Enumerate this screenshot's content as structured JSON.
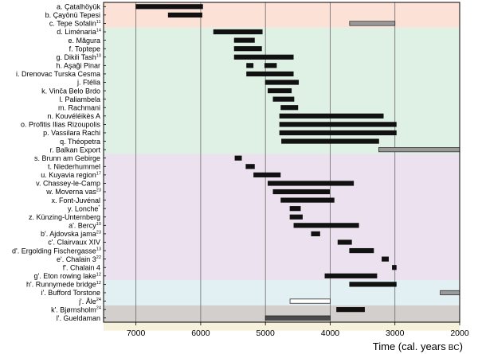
{
  "chart_data": {
    "type": "range-bar",
    "xlabel": "Time (cal. years",
    "xlabel_unit": "BC",
    "xlabel_close": ")",
    "xlim": [
      7500,
      2000
    ],
    "x_reversed": true,
    "xticks": [
      7000,
      6000,
      5000,
      4000,
      3000,
      2000
    ],
    "vertical_lines_at": [
      7000,
      6000,
      5000,
      4000,
      3000
    ],
    "bands": [
      {
        "from_row": 0,
        "to_row": 2,
        "color": "#fbe1d6"
      },
      {
        "from_row": 3,
        "to_row": 17,
        "color": "#dff0e4"
      },
      {
        "from_row": 18,
        "to_row": 32,
        "color": "#ece1ee"
      },
      {
        "from_row": 33,
        "to_row": 35,
        "color": "#e2f0f3"
      },
      {
        "from_row": 36,
        "to_row": 37,
        "color": "#d3cfcc"
      },
      {
        "from_row": 38,
        "to_row": 38,
        "color": "#f6f1da"
      }
    ],
    "rows": [
      {
        "label": "a. Çatalhöyük",
        "sup": "",
        "bars": [
          {
            "start": 7000,
            "end": 5970,
            "style": "black"
          }
        ]
      },
      {
        "label": "b. Çayönü Tepesi",
        "sup": "",
        "bars": [
          {
            "start": 6500,
            "end": 5980,
            "style": "black"
          }
        ]
      },
      {
        "label": "c. Tepe Sofalin",
        "sup": "11",
        "bars": [
          {
            "start": 3700,
            "end": 3000,
            "style": "gray"
          }
        ]
      },
      {
        "label": "d. Liménaria",
        "sup": "14",
        "bars": [
          {
            "start": 5800,
            "end": 5050,
            "style": "black"
          }
        ]
      },
      {
        "label": "e. Măgura",
        "sup": "",
        "bars": [
          {
            "start": 5480,
            "end": 5170,
            "style": "black"
          }
        ]
      },
      {
        "label": "f. Toptepe",
        "sup": "",
        "bars": [
          {
            "start": 5480,
            "end": 5060,
            "style": "black"
          }
        ]
      },
      {
        "label": "g. Dikili Tash",
        "sup": "10",
        "bars": [
          {
            "start": 5480,
            "end": 4570,
            "style": "black"
          }
        ]
      },
      {
        "label": "h. Aşaği Pinar",
        "sup": "",
        "bars": [
          {
            "start": 5290,
            "end": 5190,
            "style": "black"
          },
          {
            "start": 5010,
            "end": 4830,
            "style": "black"
          }
        ]
      },
      {
        "label": "i. Drenovac Turska Cesma",
        "sup": "",
        "bars": [
          {
            "start": 5290,
            "end": 4570,
            "style": "black"
          }
        ]
      },
      {
        "label": "j. Ftélia",
        "sup": "",
        "bars": [
          {
            "start": 5000,
            "end": 4490,
            "style": "black"
          }
        ]
      },
      {
        "label": "k. Vinča Belo Brdo",
        "sup": "",
        "bars": [
          {
            "start": 4960,
            "end": 4600,
            "style": "black"
          }
        ]
      },
      {
        "label": "l. Paliambela",
        "sup": "",
        "bars": [
          {
            "start": 4880,
            "end": 4560,
            "style": "black"
          }
        ]
      },
      {
        "label": "m. Rachmani",
        "sup": "",
        "bars": [
          {
            "start": 4760,
            "end": 4500,
            "style": "black"
          }
        ]
      },
      {
        "label": "n. Kouvéléikès A",
        "sup": "",
        "bars": [
          {
            "start": 4780,
            "end": 3180,
            "style": "black"
          }
        ]
      },
      {
        "label": "o. Profitis Ilias Rizoupolis",
        "sup": "",
        "bars": [
          {
            "start": 4780,
            "end": 2980,
            "style": "black"
          }
        ]
      },
      {
        "label": "p. Vassilara Rachi",
        "sup": "",
        "bars": [
          {
            "start": 4780,
            "end": 2980,
            "style": "black"
          }
        ]
      },
      {
        "label": "q. Théopetra",
        "sup": "",
        "bars": [
          {
            "start": 4750,
            "end": 3250,
            "style": "black"
          }
        ]
      },
      {
        "label": "r. Balkan Export",
        "sup": "",
        "bars": [
          {
            "start": 3250,
            "end": 2000,
            "style": "gray"
          }
        ]
      },
      {
        "label": "s. Brunn am Gebirge",
        "sup": "",
        "bars": [
          {
            "start": 5470,
            "end": 5370,
            "style": "black"
          }
        ]
      },
      {
        "label": "t. Niederhummel",
        "sup": "",
        "bars": [
          {
            "start": 5300,
            "end": 5170,
            "style": "black"
          }
        ]
      },
      {
        "label": "u. Kuyavia region",
        "sup": "17",
        "bars": [
          {
            "start": 5180,
            "end": 4770,
            "style": "black"
          }
        ]
      },
      {
        "label": "v. Chassey-le-Camp",
        "sup": "",
        "bars": [
          {
            "start": 4960,
            "end": 3640,
            "style": "black"
          }
        ]
      },
      {
        "label": "w. Moverna vas",
        "sup": "23",
        "bars": [
          {
            "start": 4880,
            "end": 4010,
            "style": "black"
          }
        ]
      },
      {
        "label": "x. Font-Juvénal",
        "sup": "",
        "bars": [
          {
            "start": 4760,
            "end": 3940,
            "style": "black"
          }
        ]
      },
      {
        "label": "y. Lonche",
        "sup": "*",
        "bars": [
          {
            "start": 4620,
            "end": 4460,
            "style": "black"
          }
        ]
      },
      {
        "label": "z. Künzing-Unternberg",
        "sup": "",
        "bars": [
          {
            "start": 4620,
            "end": 4430,
            "style": "black"
          }
        ]
      },
      {
        "label": "a'. Bercy",
        "sup": "10",
        "bars": [
          {
            "start": 4560,
            "end": 3560,
            "style": "black"
          }
        ]
      },
      {
        "label": "b'. Ajdovska jama",
        "sup": "23",
        "bars": [
          {
            "start": 4290,
            "end": 4160,
            "style": "black"
          }
        ]
      },
      {
        "label": "c'. Clairvaux XIV",
        "sup": "",
        "bars": [
          {
            "start": 3880,
            "end": 3670,
            "style": "black"
          }
        ]
      },
      {
        "label": "d'. Ergolding Fischergasse",
        "sup": "13",
        "bars": [
          {
            "start": 3700,
            "end": 3330,
            "style": "black"
          }
        ]
      },
      {
        "label": "e'. Chalain 3",
        "sup": "22",
        "bars": [
          {
            "start": 3200,
            "end": 3100,
            "style": "black"
          }
        ]
      },
      {
        "label": "f'. Chalain 4",
        "sup": "",
        "bars": [
          {
            "start": 3040,
            "end": 2980,
            "style": "black"
          }
        ]
      },
      {
        "label": "g'. Eton rowing lake",
        "sup": "12",
        "bars": [
          {
            "start": 4080,
            "end": 3280,
            "style": "black"
          }
        ]
      },
      {
        "label": "h'. Runnymede bridge",
        "sup": "12",
        "bars": [
          {
            "start": 3700,
            "end": 2980,
            "style": "black"
          }
        ]
      },
      {
        "label": "i'. Bufford Torstone",
        "sup": "",
        "bars": [
          {
            "start": 2300,
            "end": 2000,
            "style": "gray"
          }
        ]
      },
      {
        "label": "j'. Åle",
        "sup": "24",
        "bars": [
          {
            "start": 4620,
            "end": 4000,
            "style": "white"
          }
        ]
      },
      {
        "label": "k'. Bjørnsholm",
        "sup": "24",
        "bars": [
          {
            "start": 3900,
            "end": 3470,
            "style": "black"
          }
        ]
      },
      {
        "label": "l'. Gueldaman",
        "sup": "",
        "bars": [
          {
            "start": 5000,
            "end": 4000,
            "style": "darkgray"
          }
        ]
      }
    ]
  }
}
